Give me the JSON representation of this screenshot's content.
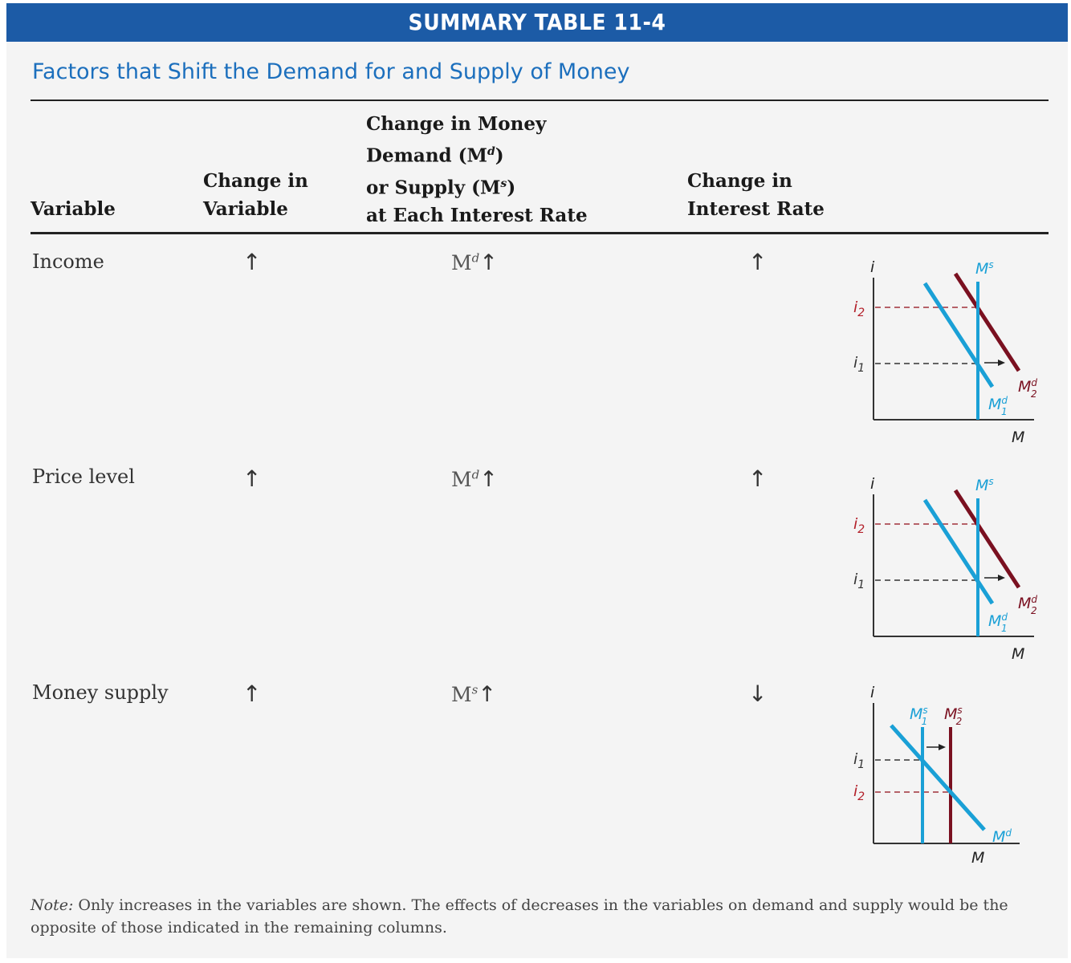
{
  "banner": {
    "label": "SUMMARY TABLE",
    "number": "11-4"
  },
  "subtitle": "Factors that Shift the Demand for and Supply of Money",
  "headers": {
    "variable": "Variable",
    "change_var_1": "Change in",
    "change_var_2": "Variable",
    "money_1": "Change in Money",
    "money_2a": "Demand (M",
    "money_2sup": "d",
    "money_2b": ")",
    "money_3a": "or Supply (M",
    "money_3sup": "s",
    "money_3b": ")",
    "money_4": "at Each Interest Rate",
    "rate_1": "Change in",
    "rate_2": "Interest Rate"
  },
  "rows": [
    {
      "variable": "Income",
      "change": "↑",
      "sym": "M",
      "sym_sup": "d",
      "sym_arrow": "↑",
      "rate": "↑"
    },
    {
      "variable": "Price level",
      "change": "↑",
      "sym": "M",
      "sym_sup": "d",
      "sym_arrow": "↑",
      "rate": "↑"
    },
    {
      "variable": "Money supply",
      "change": "↑",
      "sym": "M",
      "sym_sup": "s",
      "sym_arrow": "↑",
      "rate": "↓"
    }
  ],
  "graphs": {
    "y_axis": "i",
    "x_axis": "M",
    "ms": "M",
    "ms_sup": "s",
    "md": "M",
    "md_sup": "d",
    "sub1": "1",
    "sub2": "2",
    "i1": "i",
    "i2": "i"
  },
  "note": {
    "lead": "Note:",
    "text": " Only increases in the variables are shown. The effects of decreases in the variables on demand and supply would be the opposite of those indicated in the remaining columns."
  },
  "colors": {
    "banner": "#1c5ba6",
    "subtitle": "#1c6fbd",
    "blue_line": "#1aa0d6",
    "red_line": "#7a1020",
    "i_label_red": "#b3202a"
  }
}
